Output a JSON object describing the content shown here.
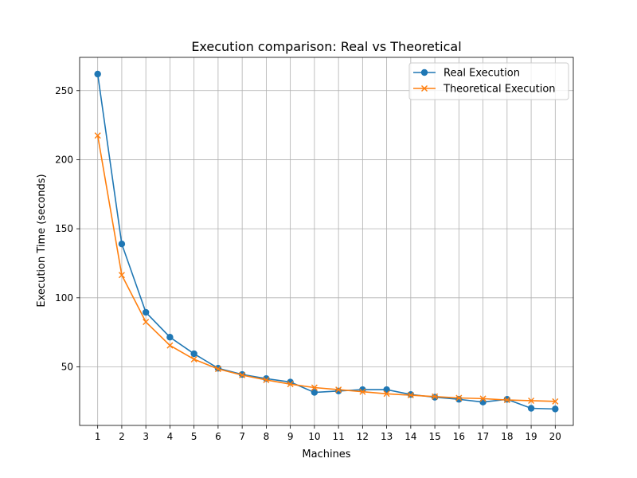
{
  "chart_data": {
    "type": "line",
    "title": "Execution comparison: Real vs Theoretical",
    "xlabel": "Machines",
    "ylabel": "Execution Time (seconds)",
    "x": [
      1,
      2,
      3,
      4,
      5,
      6,
      7,
      8,
      9,
      10,
      11,
      12,
      13,
      14,
      15,
      16,
      17,
      18,
      19,
      20
    ],
    "xlim": [
      0.25,
      20.75
    ],
    "ylim": [
      7.6,
      274.1
    ],
    "yticks": [
      50,
      100,
      150,
      200,
      250
    ],
    "grid": true,
    "legend_position": "top-right",
    "series": [
      {
        "name": "Real Execution",
        "color": "#1f77b4",
        "marker": "circle",
        "values": [
          262,
          139,
          89.5,
          71.5,
          59.5,
          49,
          44.5,
          41.5,
          39,
          31.5,
          32.5,
          33.5,
          33.5,
          30,
          28,
          26.5,
          24.5,
          26.5,
          20,
          19.5
        ]
      },
      {
        "name": "Theoretical Execution",
        "color": "#ff7f0e",
        "marker": "x",
        "values": [
          217.5,
          116.5,
          82.5,
          65.5,
          55.5,
          48.5,
          44,
          40.5,
          37.5,
          35,
          33.5,
          32,
          30.5,
          29.5,
          28.5,
          27.5,
          27,
          26,
          25.5,
          25
        ]
      }
    ]
  }
}
